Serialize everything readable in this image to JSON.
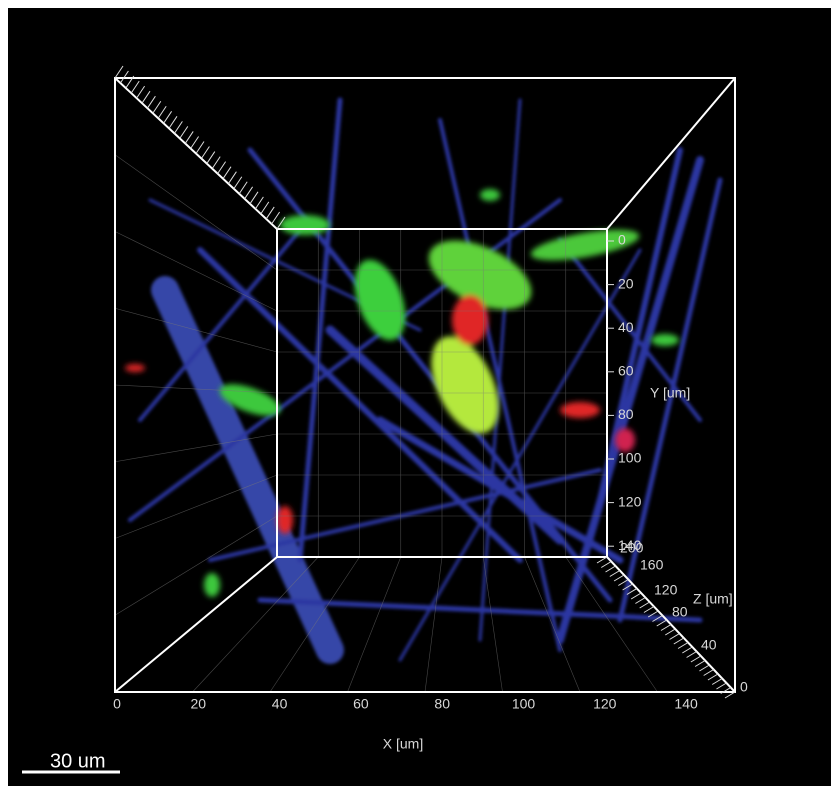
{
  "x_axis": {
    "label": "X [um]",
    "ticks": [
      "0",
      "20",
      "40",
      "60",
      "80",
      "100",
      "120",
      "140"
    ]
  },
  "y_axis": {
    "label": "Y [um]",
    "ticks": [
      "0",
      "20",
      "40",
      "60",
      "80",
      "100",
      "120",
      "140"
    ]
  },
  "z_axis": {
    "label": "Z [um]",
    "ticks": [
      "200",
      "160",
      "120",
      "80",
      "40",
      "0"
    ]
  },
  "scale_bar": "30 um"
}
